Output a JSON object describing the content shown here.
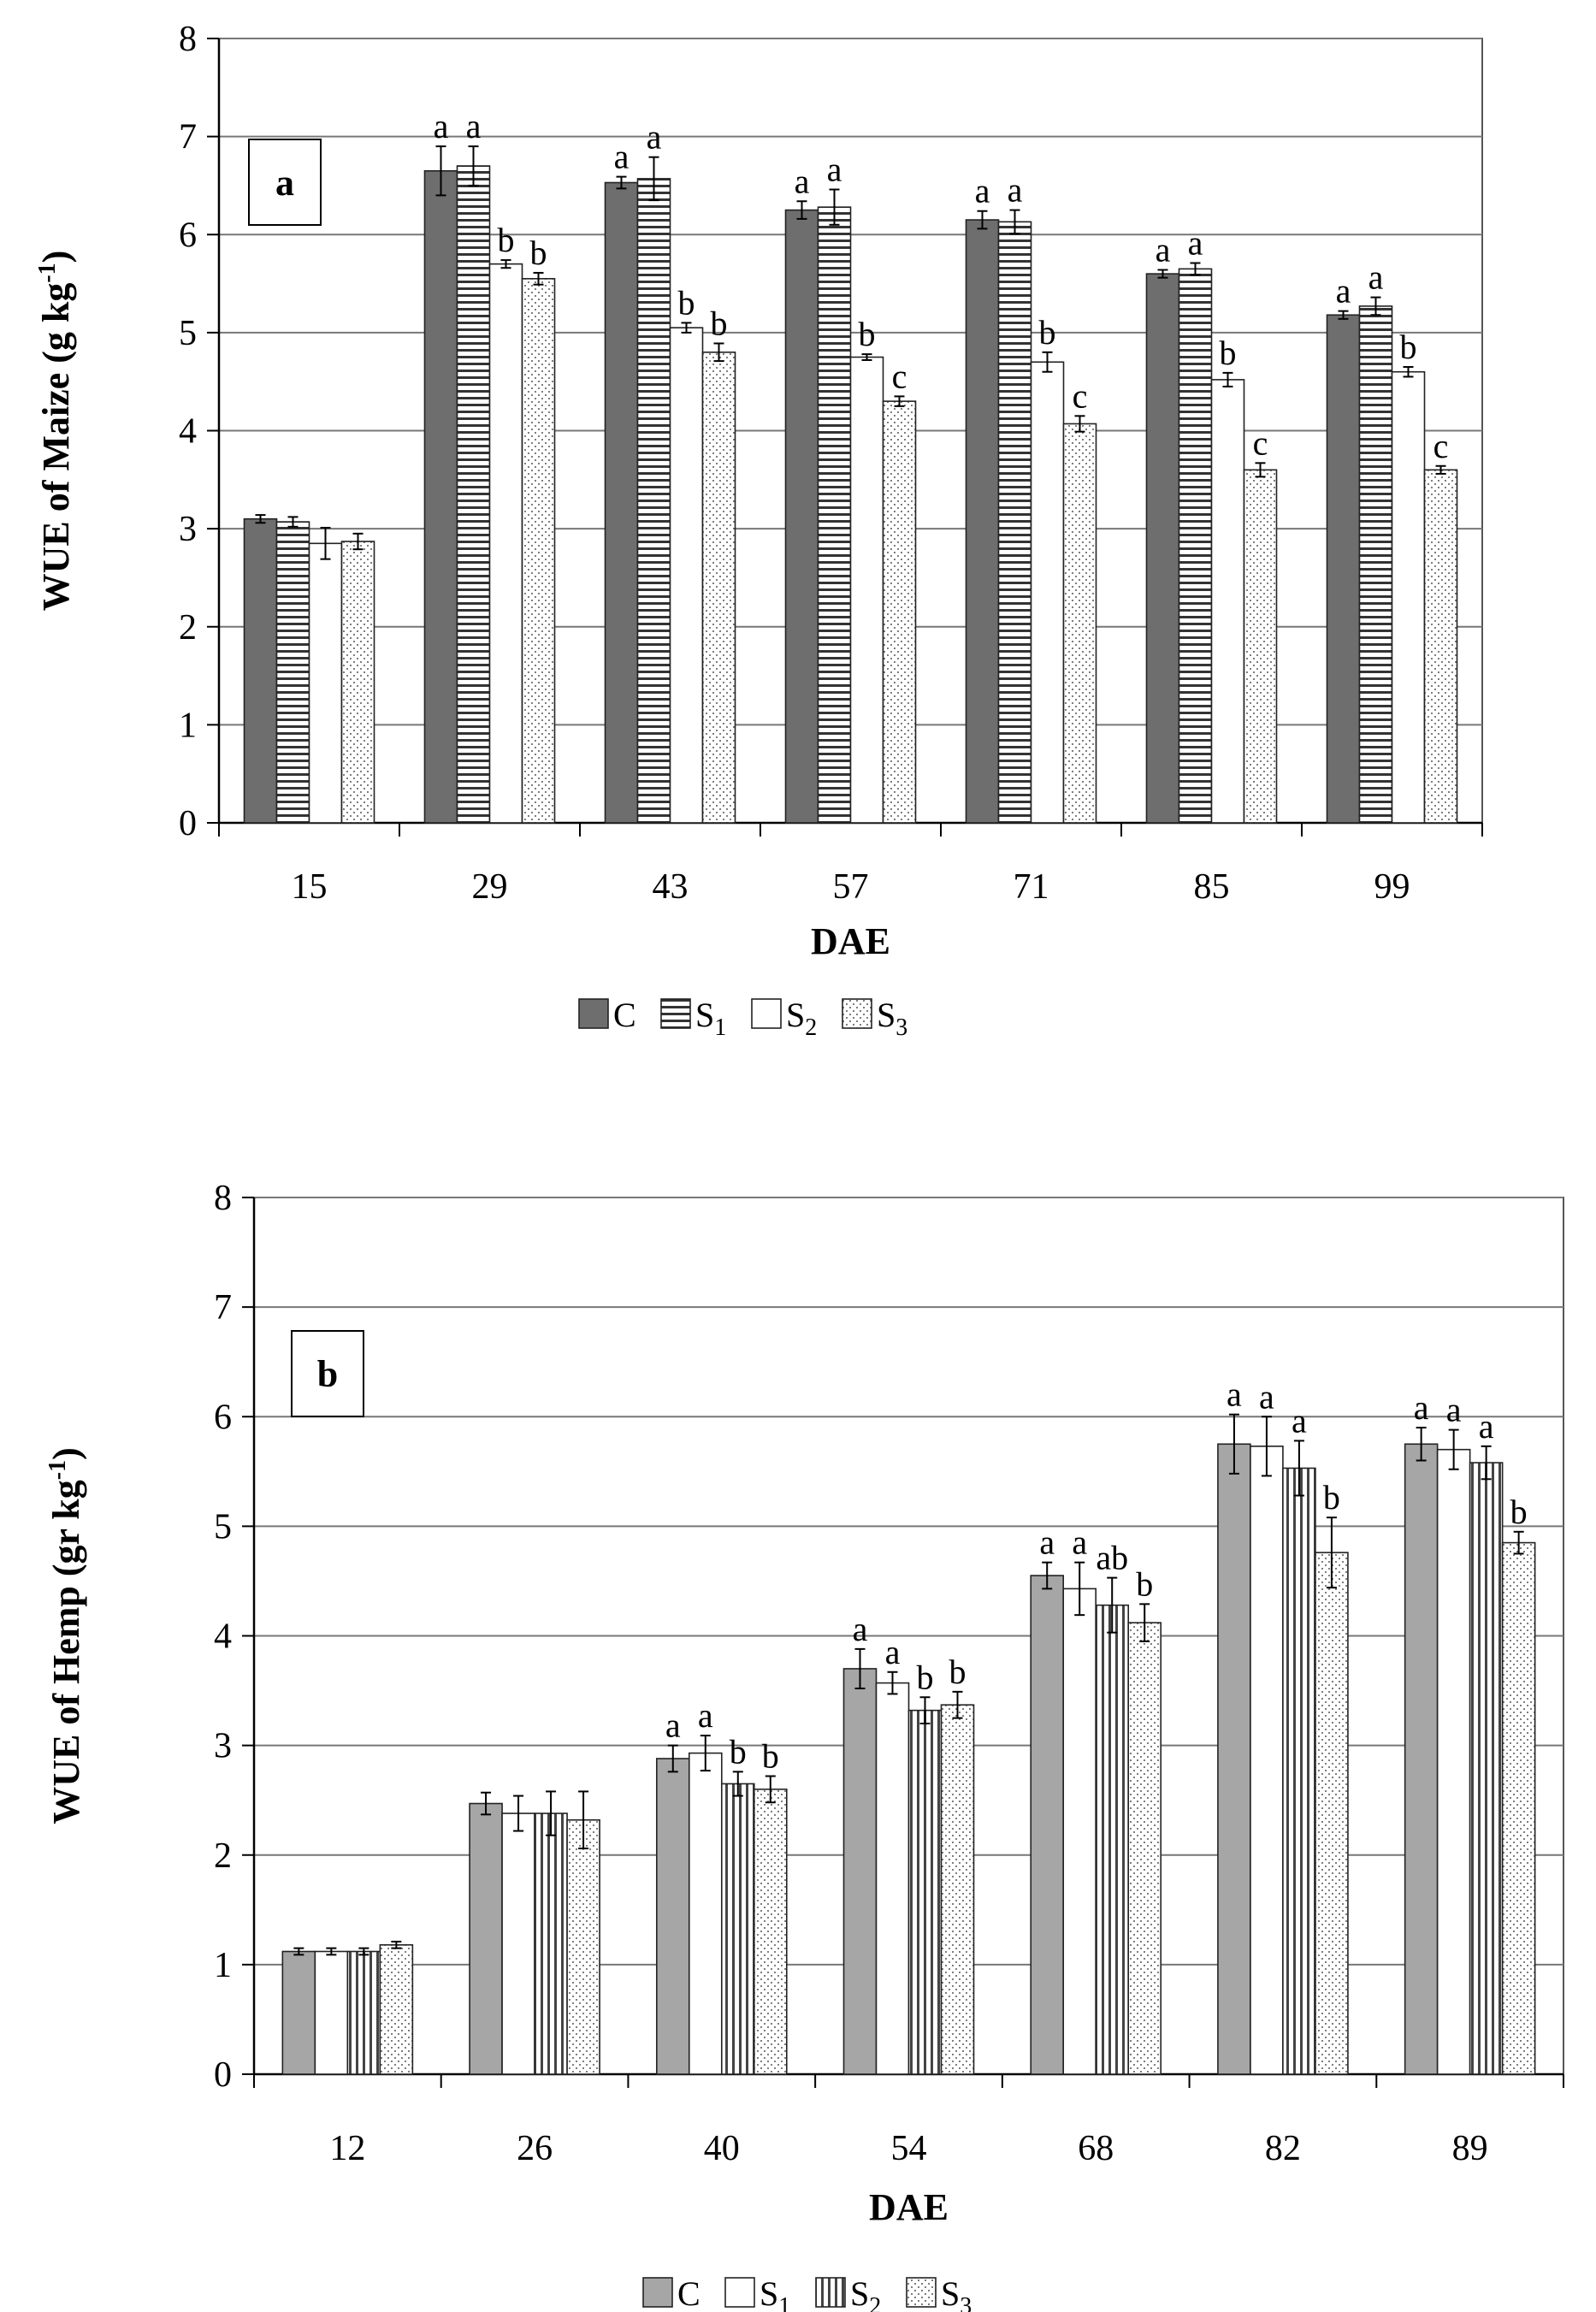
{
  "chart_data": [
    {
      "type": "bar",
      "panel_label": "a",
      "xlabel": "DAE",
      "ylabel": "WUE of Maize (g kg",
      "ylabel_sup": "-1",
      "ylabel_close": ")",
      "ylim": [
        0,
        8
      ],
      "yticks": [
        "0",
        "1",
        "2",
        "3",
        "4",
        "5",
        "6",
        "7",
        "8"
      ],
      "grid": true,
      "categories": [
        "15",
        "29",
        "43",
        "57",
        "71",
        "85",
        "99"
      ],
      "series": [
        {
          "name": "C",
          "sub": "",
          "pattern": "dark",
          "values": [
            3.1,
            6.65,
            6.53,
            6.25,
            6.15,
            5.6,
            5.18
          ],
          "errors": [
            0.04,
            0.25,
            0.06,
            0.09,
            0.09,
            0.04,
            0.04
          ],
          "letters": [
            "",
            "a",
            "a",
            "a",
            "a",
            "a",
            "a"
          ]
        },
        {
          "name": "S",
          "sub": "1",
          "pattern": "hstripe",
          "values": [
            3.07,
            6.7,
            6.57,
            6.28,
            6.13,
            5.65,
            5.27
          ],
          "errors": [
            0.05,
            0.2,
            0.22,
            0.18,
            0.12,
            0.06,
            0.09
          ],
          "letters": [
            "",
            "a",
            "a",
            "a",
            "a",
            "a",
            "a"
          ]
        },
        {
          "name": "S",
          "sub": "2",
          "pattern": "white",
          "values": [
            2.85,
            5.7,
            5.05,
            4.75,
            4.7,
            4.52,
            4.6
          ],
          "errors": [
            0.16,
            0.04,
            0.05,
            0.03,
            0.1,
            0.07,
            0.05
          ],
          "letters": [
            "",
            "b",
            "b",
            "b",
            "b",
            "b",
            "b"
          ]
        },
        {
          "name": "S",
          "sub": "3",
          "pattern": "dots",
          "values": [
            2.87,
            5.55,
            4.8,
            4.3,
            4.07,
            3.6,
            3.6
          ],
          "errors": [
            0.08,
            0.06,
            0.09,
            0.05,
            0.08,
            0.07,
            0.04
          ],
          "letters": [
            "",
            "b",
            "b",
            "c",
            "c",
            "c",
            "c"
          ]
        }
      ]
    },
    {
      "type": "bar",
      "panel_label": "b",
      "xlabel": "DAE",
      "ylabel": "WUE of Hemp  (gr kg",
      "ylabel_sup": "-1",
      "ylabel_close": ")",
      "ylim": [
        0,
        8
      ],
      "yticks": [
        "0",
        "1",
        "2",
        "3",
        "4",
        "5",
        "6",
        "7",
        "8"
      ],
      "grid": true,
      "categories": [
        "12",
        "26",
        "40",
        "54",
        "68",
        "82",
        "89"
      ],
      "series": [
        {
          "name": "C",
          "sub": "",
          "pattern": "gray",
          "values": [
            1.12,
            2.47,
            2.88,
            3.7,
            4.55,
            5.75,
            5.75
          ],
          "errors": [
            0.03,
            0.1,
            0.12,
            0.18,
            0.12,
            0.27,
            0.15
          ],
          "letters": [
            "",
            "",
            "a",
            "a",
            "a",
            "a",
            "a"
          ]
        },
        {
          "name": "S",
          "sub": "1",
          "pattern": "white",
          "values": [
            1.12,
            2.38,
            2.93,
            3.57,
            4.43,
            5.73,
            5.7
          ],
          "errors": [
            0.03,
            0.16,
            0.16,
            0.1,
            0.24,
            0.27,
            0.18
          ],
          "letters": [
            "",
            "",
            "a",
            "a",
            "a",
            "a",
            "a"
          ]
        },
        {
          "name": "S",
          "sub": "2",
          "pattern": "vstripe",
          "values": [
            1.12,
            2.38,
            2.65,
            3.32,
            4.28,
            5.53,
            5.58
          ],
          "errors": [
            0.03,
            0.2,
            0.11,
            0.12,
            0.25,
            0.25,
            0.15
          ],
          "letters": [
            "",
            "",
            "b",
            "b",
            "ab",
            "a",
            "a"
          ]
        },
        {
          "name": "S",
          "sub": "3",
          "pattern": "dots",
          "values": [
            1.18,
            2.32,
            2.6,
            3.37,
            4.12,
            4.76,
            4.85
          ],
          "errors": [
            0.03,
            0.26,
            0.12,
            0.12,
            0.17,
            0.32,
            0.1
          ],
          "letters": [
            "",
            "",
            "b",
            "b",
            "b",
            "b",
            "b"
          ]
        }
      ]
    }
  ]
}
